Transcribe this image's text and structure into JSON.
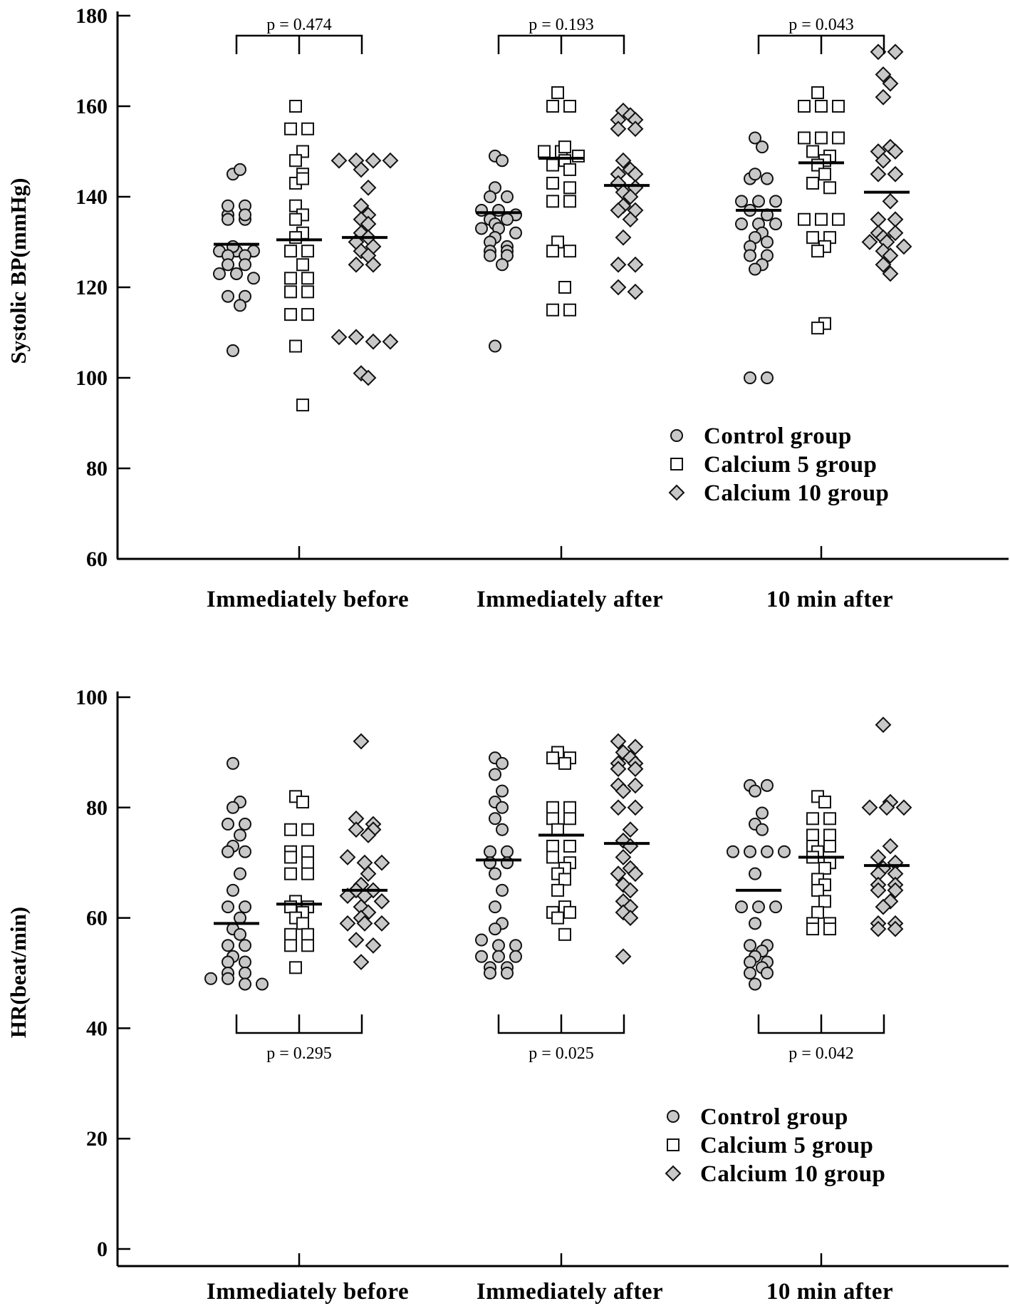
{
  "chart_data": [
    {
      "type": "scatter",
      "subtype": "dot-plot",
      "title": "",
      "ylabel": "Systolic BP(mmHg)",
      "ylim": [
        60,
        180
      ],
      "yticks": [
        60,
        80,
        100,
        120,
        140,
        160,
        180
      ],
      "categories": [
        "Immediately before",
        "Immediately after",
        "10 min after"
      ],
      "legend": {
        "position": "bottom-right",
        "entries": [
          "Control group",
          "Calcium 5 group",
          "Calcium 10 group"
        ]
      },
      "p_values": {
        "placement": "above",
        "labels": [
          "p = 0.474",
          "p = 0.193",
          "p = 0.043"
        ]
      },
      "series": [
        {
          "name": "Control group",
          "marker": "circle",
          "values": [
            [
              145,
              146,
              136,
              138,
              138,
              135,
              135,
              136,
              128,
              128,
              129,
              128,
              127,
              127,
              125,
              125,
              123,
              123,
              122,
              118,
              118,
              116,
              106
            ],
            [
              149,
              148,
              142,
              140,
              140,
              137,
              137,
              136,
              135,
              135,
              134,
              133,
              133,
              132,
              131,
              130,
              129,
              128,
              128,
              127,
              127,
              125,
              107
            ],
            [
              153,
              151,
              144,
              144,
              145,
              139,
              139,
              139,
              137,
              136,
              134,
              134,
              134,
              132,
              131,
              129,
              130,
              127,
              127,
              125,
              124,
              100,
              100
            ]
          ],
          "means": [
            129.5,
            136.5,
            137
          ]
        },
        {
          "name": "Calcium 5 group",
          "marker": "square",
          "values": [
            [
              160,
              155,
              155,
              150,
              148,
              145,
              143,
              144,
              138,
              136,
              135,
              132,
              131,
              128,
              128,
              125,
              122,
              122,
              119,
              119,
              114,
              114,
              107,
              94
            ],
            [
              163,
              160,
              160,
              150,
              150,
              151,
              149,
              148,
              147,
              146,
              143,
              142,
              139,
              139,
              130,
              128,
              128,
              120,
              115,
              115
            ],
            [
              163,
              160,
              160,
              160,
              153,
              153,
              153,
              150,
              149,
              148,
              147,
              145,
              143,
              142,
              135,
              135,
              135,
              131,
              131,
              129,
              128,
              112,
              111
            ]
          ],
          "means": [
            130.5,
            148.5,
            147.5
          ]
        },
        {
          "name": "Calcium 10 group",
          "marker": "diamond",
          "values": [
            [
              148,
              148,
              148,
              148,
              146,
              142,
              138,
              136,
              135,
              134,
              132,
              131,
              130,
              129,
              128,
              127,
              125,
              125,
              109,
              109,
              108,
              108,
              101,
              100
            ],
            [
              159,
              158,
              157,
              157,
              155,
              155,
              148,
              146,
              145,
              145,
              143,
              142,
              141,
              140,
              138,
              137,
              137,
              135,
              131,
              125,
              125,
              120,
              119
            ],
            [
              172,
              172,
              167,
              165,
              162,
              151,
              150,
              150,
              148,
              145,
              145,
              139,
              135,
              135,
              132,
              132,
              131,
              130,
              130,
              129,
              128,
              127,
              125,
              123
            ]
          ],
          "means": [
            131,
            142.5,
            141
          ]
        }
      ]
    },
    {
      "type": "scatter",
      "subtype": "dot-plot",
      "title": "",
      "ylabel": "HR(beat/min)",
      "ylim": [
        0,
        100
      ],
      "yticks": [
        0,
        20,
        40,
        60,
        80,
        100
      ],
      "categories": [
        "Immediately before",
        "Immediately after",
        "10 min after"
      ],
      "legend": {
        "position": "bottom-right",
        "entries": [
          "Control group",
          "Calcium 5 group",
          "Calcium 10 group"
        ]
      },
      "p_values": {
        "placement": "below",
        "labels": [
          "p = 0.295",
          "p = 0.025",
          "p = 0.042"
        ]
      },
      "series": [
        {
          "name": "Control group",
          "marker": "circle",
          "values": [
            [
              88,
              81,
              80,
              77,
              77,
              75,
              73,
              72,
              72,
              68,
              65,
              62,
              62,
              60,
              58,
              57,
              55,
              55,
              53,
              52,
              52,
              50,
              50,
              49,
              49,
              48,
              48
            ],
            [
              89,
              88,
              86,
              83,
              81,
              80,
              78,
              76,
              72,
              72,
              70,
              70,
              68,
              65,
              62,
              59,
              58,
              56,
              55,
              55,
              53,
              53,
              53,
              51,
              51,
              50,
              50
            ],
            [
              84,
              84,
              83,
              79,
              77,
              76,
              72,
              72,
              72,
              72,
              68,
              62,
              62,
              62,
              59,
              55,
              55,
              54,
              53,
              52,
              52,
              51,
              50,
              50,
              48
            ]
          ],
          "means": [
            59,
            70.5,
            65
          ]
        },
        {
          "name": "Calcium 5 group",
          "marker": "square",
          "values": [
            [
              82,
              81,
              76,
              76,
              72,
              72,
              71,
              70,
              68,
              68,
              63,
              62,
              62,
              61,
              60,
              59,
              57,
              57,
              55,
              55,
              51
            ],
            [
              90,
              89,
              89,
              88,
              80,
              80,
              78,
              78,
              76,
              73,
              73,
              71,
              70,
              69,
              68,
              67,
              65,
              62,
              61,
              61,
              60,
              57
            ],
            [
              82,
              81,
              78,
              78,
              75,
              75,
              73,
              73,
              72,
              71,
              70,
              69,
              67,
              66,
              65,
              63,
              61,
              59,
              59,
              58,
              58
            ]
          ],
          "means": [
            62.5,
            75,
            71
          ]
        },
        {
          "name": "Calcium 10 group",
          "marker": "diamond",
          "values": [
            [
              92,
              78,
              77,
              76,
              76,
              75,
              71,
              70,
              70,
              68,
              66,
              65,
              65,
              64,
              64,
              63,
              62,
              61,
              60,
              59,
              59,
              59,
              56,
              55,
              52
            ],
            [
              92,
              91,
              90,
              89,
              88,
              88,
              87,
              87,
              84,
              84,
              83,
              80,
              80,
              76,
              74,
              73,
              71,
              69,
              68,
              68,
              66,
              65,
              63,
              62,
              61,
              60,
              53
            ],
            [
              95,
              81,
              80,
              80,
              80,
              73,
              71,
              70,
              69,
              68,
              68,
              66,
              66,
              65,
              65,
              63,
              62,
              59,
              59,
              58,
              58
            ]
          ],
          "means": [
            65,
            73.5,
            69.5
          ]
        }
      ]
    }
  ]
}
